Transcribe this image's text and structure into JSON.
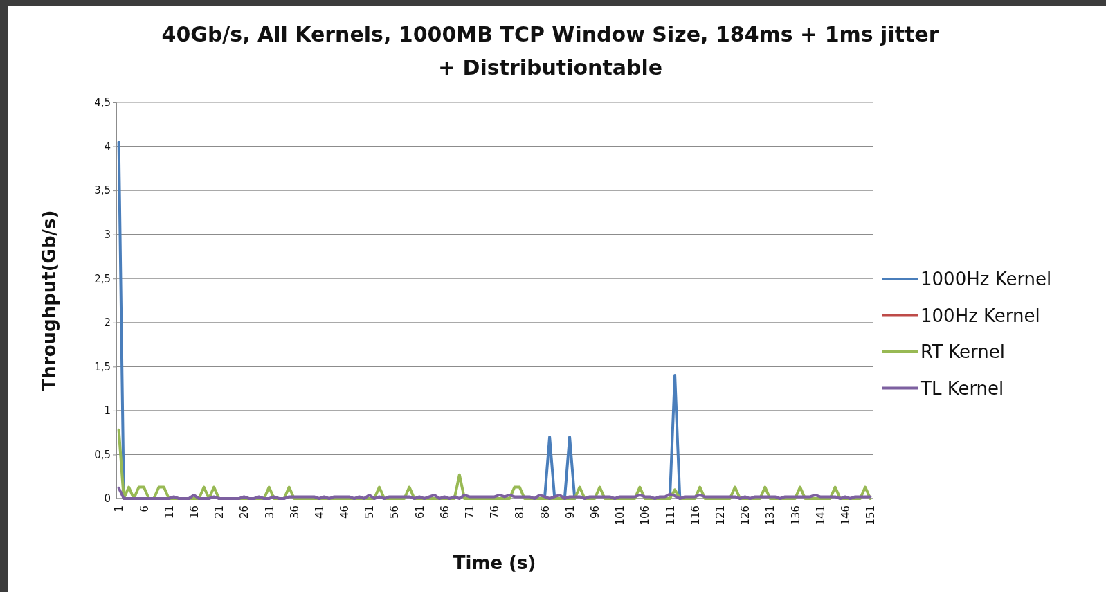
{
  "chart_data": {
    "type": "line",
    "title": "40Gb/s, All Kernels, 1000MB TCP Window Size, 184ms + 1ms jitter\n+ Distributiontable",
    "xlabel": "Time (s)",
    "ylabel": "Throughput(Gb/s)",
    "categories": [
      "1",
      null,
      null,
      null,
      null,
      "6",
      null,
      null,
      null,
      null,
      "11",
      null,
      null,
      null,
      null,
      "16",
      null,
      null,
      null,
      null,
      "21",
      null,
      null,
      null,
      null,
      "26",
      null,
      null,
      null,
      null,
      "31",
      null,
      null,
      null,
      null,
      "36",
      null,
      null,
      null,
      null,
      "41",
      null,
      null,
      null,
      null,
      "46",
      null,
      null,
      null,
      null,
      "51",
      null,
      null,
      null,
      null,
      "56",
      null,
      null,
      null,
      null,
      "61",
      null,
      null,
      null,
      null,
      "66",
      null,
      null,
      null,
      null,
      "71",
      null,
      null,
      null,
      null,
      "76",
      null,
      null,
      null,
      null,
      "81",
      null,
      null,
      null,
      null,
      "86",
      null,
      null,
      null,
      null,
      "91",
      null,
      null,
      null,
      null,
      "96",
      null,
      null,
      null,
      null,
      "101",
      null,
      null,
      null,
      null,
      "106",
      null,
      null,
      null,
      null,
      "111",
      null,
      null,
      null,
      null,
      "116",
      null,
      null,
      null,
      null,
      "121",
      null,
      null,
      null,
      null,
      "126",
      null,
      null,
      null,
      null,
      "131",
      null,
      null,
      null,
      null,
      "136",
      null,
      null,
      null,
      null,
      "141",
      null,
      null,
      null,
      null,
      "146",
      null,
      null,
      null,
      null,
      "151"
    ],
    "ylim": [
      0,
      4.5
    ],
    "yticks": [
      0,
      {
        "value": 0.5,
        "label": "0,5"
      },
      1,
      {
        "value": 1.5,
        "label": "1,5"
      },
      2,
      {
        "value": 2.5,
        "label": "2,5"
      },
      3,
      {
        "value": 3.5,
        "label": "3,5"
      },
      4,
      {
        "value": 4.5,
        "label": "4,5"
      }
    ],
    "grid": "y",
    "legend": "right",
    "marker": "none",
    "line_style": "solid",
    "series": [
      {
        "name": "1000Hz Kernel",
        "color": "#4a7ebb",
        "values": [
          4.05,
          0,
          null,
          null,
          null,
          null,
          null,
          null,
          null,
          null,
          null,
          null,
          null,
          null,
          null,
          null,
          null,
          null,
          null,
          null,
          null,
          null,
          null,
          null,
          null,
          null,
          null,
          null,
          null,
          null,
          null,
          null,
          null,
          null,
          null,
          null,
          null,
          null,
          null,
          null,
          null,
          null,
          null,
          null,
          null,
          null,
          null,
          null,
          null,
          null,
          null,
          null,
          null,
          null,
          null,
          null,
          null,
          null,
          null,
          null,
          null,
          null,
          null,
          null,
          null,
          null,
          null,
          null,
          null,
          null,
          null,
          null,
          null,
          null,
          null,
          null,
          null,
          null,
          null,
          null,
          null,
          null,
          null,
          null,
          null,
          0,
          0.7,
          0,
          0,
          0,
          0.7,
          0,
          null,
          null,
          null,
          null,
          null,
          null,
          null,
          null,
          null,
          null,
          null,
          null,
          null,
          null,
          null,
          null,
          null,
          null,
          0,
          1.4,
          0,
          null,
          null,
          null,
          null,
          null,
          null,
          null,
          null,
          null,
          null,
          null,
          null,
          null,
          null,
          null,
          null,
          null,
          null,
          null,
          null,
          null,
          null,
          null,
          null,
          null,
          null,
          null,
          null,
          null,
          null,
          null,
          null,
          null,
          null,
          null,
          null,
          null,
          null
        ]
      },
      {
        "name": "100Hz Kernel",
        "color": "#be4b48",
        "values": [
          null,
          null,
          null,
          null,
          null,
          null,
          null,
          null,
          null,
          null,
          null,
          null,
          null,
          null,
          null,
          null,
          null,
          null,
          null,
          null,
          null,
          null,
          null,
          null,
          null,
          null,
          null,
          null,
          null,
          null,
          null,
          null,
          null,
          null,
          null,
          null,
          null,
          null,
          null,
          null,
          null,
          null,
          null,
          null,
          null,
          null,
          null,
          null,
          null,
          null,
          null,
          null,
          null,
          null,
          null,
          null,
          null,
          null,
          null,
          null,
          null,
          null,
          null,
          null,
          null,
          null,
          null,
          null,
          null,
          null,
          null,
          null,
          null,
          null,
          null,
          null,
          null,
          null,
          null,
          null,
          null,
          null,
          null,
          null,
          null,
          null,
          null,
          null,
          null,
          null,
          null,
          null,
          null,
          null,
          null,
          null,
          null,
          null,
          null,
          null,
          null,
          null,
          null,
          null,
          null,
          null,
          null,
          null,
          null,
          null,
          null,
          null,
          null,
          null,
          null,
          null,
          null,
          null,
          null,
          null,
          null,
          null,
          null,
          null,
          null,
          null,
          null,
          null,
          null,
          null,
          null,
          null,
          null,
          null,
          null,
          null,
          null,
          null,
          null,
          null,
          null,
          null,
          null,
          null,
          null,
          null,
          null,
          null,
          null,
          null,
          null
        ]
      },
      {
        "name": "RT Kernel",
        "color": "#98b954",
        "values": [
          0.78,
          0,
          0.13,
          0,
          0.13,
          0.13,
          0,
          0,
          0.13,
          0.13,
          0,
          0,
          0,
          0,
          0,
          0,
          0,
          0.13,
          0,
          0.13,
          0,
          0,
          0,
          0,
          0,
          0,
          0,
          0,
          0,
          0,
          0.13,
          0,
          0,
          0,
          0.13,
          0,
          0,
          0,
          0,
          0,
          0,
          0,
          0,
          0,
          0,
          0,
          0,
          0,
          0,
          0,
          0,
          0,
          0.13,
          0,
          0,
          0,
          0,
          0,
          0.13,
          0,
          0,
          0,
          0,
          0,
          0,
          0,
          0,
          0,
          0.27,
          0,
          0,
          0,
          0,
          0,
          0,
          0,
          0,
          0,
          0,
          0.13,
          0.13,
          0,
          0,
          0,
          0,
          0,
          0,
          0,
          0,
          0,
          0,
          0,
          0.13,
          0,
          0,
          0,
          0.13,
          0,
          0,
          0,
          0,
          0,
          0,
          0,
          0.13,
          0,
          0,
          0,
          0,
          0,
          0,
          0.1,
          0,
          0,
          0,
          0,
          0.13,
          0,
          0,
          0,
          0,
          0,
          0,
          0.13,
          0,
          0,
          0,
          0,
          0,
          0.13,
          0,
          0,
          0,
          0,
          0,
          0,
          0.13,
          0,
          0,
          0,
          0,
          0,
          0,
          0.13,
          0,
          0,
          0,
          0,
          0,
          0.13,
          0
        ]
      },
      {
        "name": "TL Kernel",
        "color": "#7d60a0",
        "values": [
          0.12,
          0,
          0,
          0,
          0,
          0,
          0,
          0,
          0,
          0,
          0,
          0.02,
          0,
          0,
          0,
          0.04,
          0,
          0,
          0,
          0.02,
          0,
          0,
          0,
          0,
          0,
          0.02,
          0,
          0,
          0.02,
          0,
          0,
          0.02,
          0,
          0,
          0.02,
          0.02,
          0.02,
          0.02,
          0.02,
          0.02,
          0,
          0.02,
          0,
          0.02,
          0.02,
          0.02,
          0.02,
          0,
          0.02,
          0,
          0.04,
          0,
          0.02,
          0,
          0.02,
          0.02,
          0.02,
          0.02,
          0.02,
          0,
          0.02,
          0,
          0.02,
          0.04,
          0,
          0.02,
          0,
          0.02,
          0,
          0.04,
          0.02,
          0.02,
          0.02,
          0.02,
          0.02,
          0.02,
          0.04,
          0.02,
          0.04,
          0.02,
          0.02,
          0.02,
          0.02,
          0,
          0.04,
          0.02,
          0,
          0.02,
          0.04,
          0,
          0.02,
          0.02,
          0.02,
          0,
          0.02,
          0.02,
          0.02,
          0.02,
          0.02,
          0,
          0.02,
          0.02,
          0.02,
          0.02,
          0.04,
          0.02,
          0.02,
          0,
          0.02,
          0.02,
          0.05,
          0.03,
          0,
          0.02,
          0.02,
          0.02,
          0.04,
          0.02,
          0.02,
          0.02,
          0.02,
          0.02,
          0.02,
          0.02,
          0,
          0.02,
          0,
          0.02,
          0.02,
          0.02,
          0.02,
          0.02,
          0,
          0.02,
          0.02,
          0.02,
          0.02,
          0.02,
          0.02,
          0.04,
          0.02,
          0.02,
          0.02,
          0.02,
          0,
          0.02,
          0,
          0.02,
          0.02,
          0.02,
          0.02
        ]
      }
    ]
  }
}
